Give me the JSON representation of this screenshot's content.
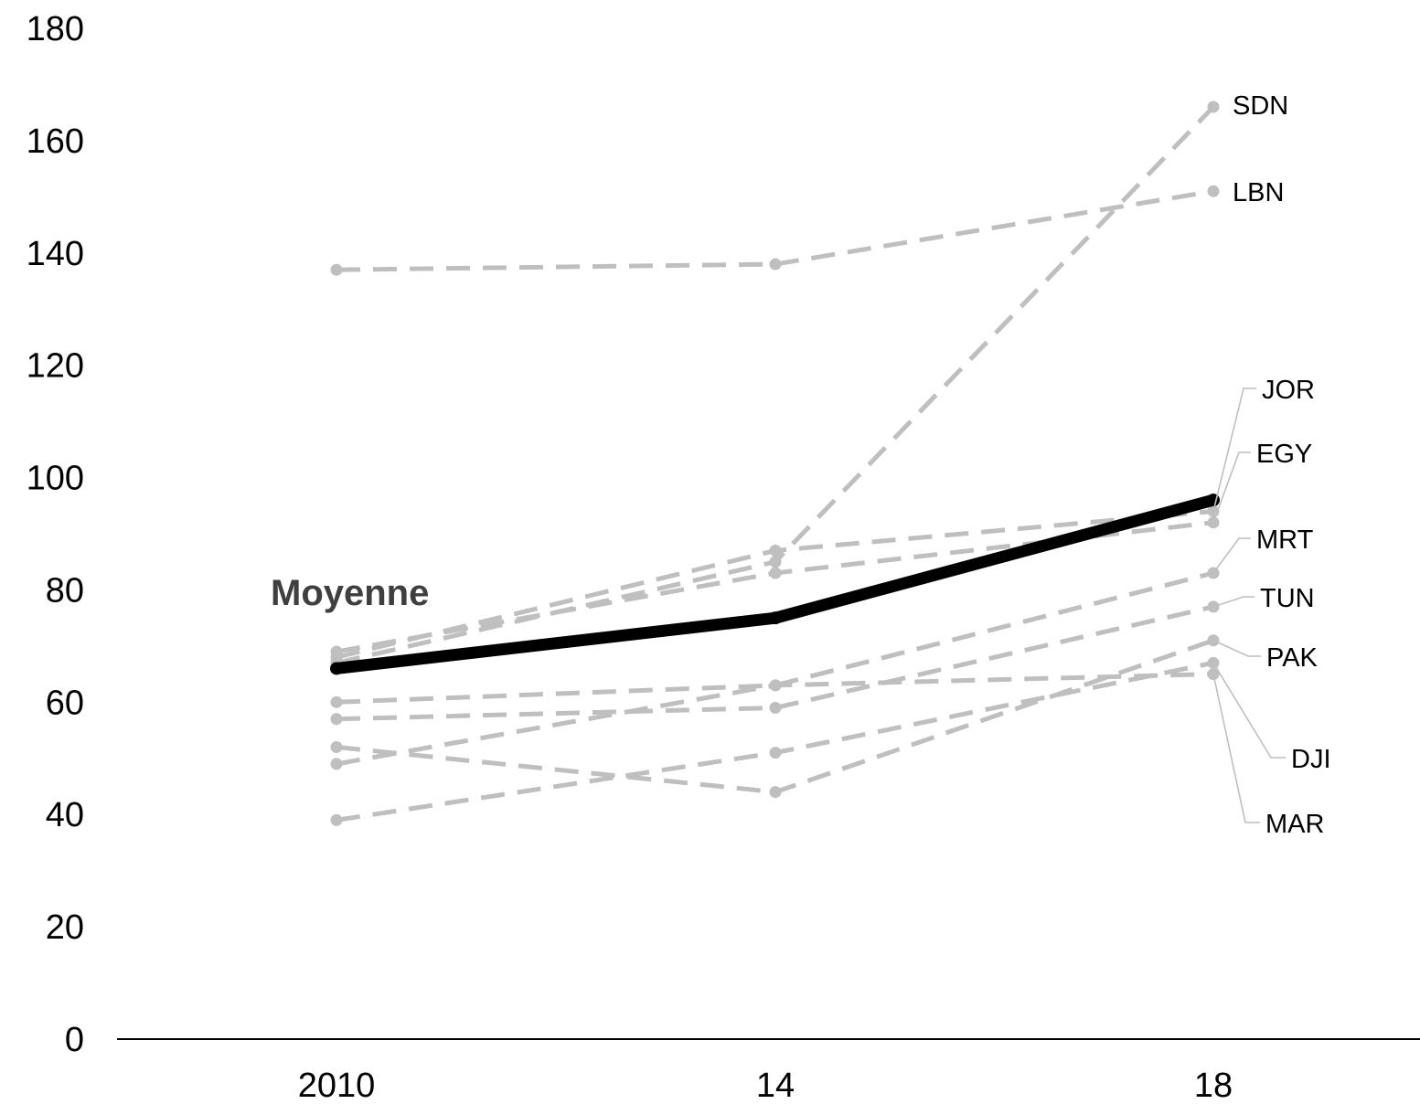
{
  "chart_data": {
    "type": "line",
    "title": "",
    "xlabel": "",
    "ylabel": "",
    "x": [
      "2010",
      "14",
      "18"
    ],
    "ylim": [
      0,
      180
    ],
    "yticks": [
      "0",
      "20",
      "40",
      "60",
      "80",
      "100",
      "120",
      "140",
      "160",
      "180"
    ],
    "grid": false,
    "legend": "none",
    "colors": {
      "series": "#bfbfbf",
      "average": "#000000",
      "axis": "#000000",
      "leader": "#bfbfbf"
    },
    "average": {
      "name": "Moyenne",
      "values": [
        66,
        75,
        96
      ]
    },
    "series": [
      {
        "name": "SDN",
        "values": [
          67,
          85,
          166
        ]
      },
      {
        "name": "LBN",
        "values": [
          137,
          138,
          151
        ]
      },
      {
        "name": "JOR",
        "values": [
          68,
          87,
          94
        ]
      },
      {
        "name": "EGY",
        "values": [
          69,
          83,
          92
        ]
      },
      {
        "name": "MRT",
        "values": [
          60,
          63,
          83
        ]
      },
      {
        "name": "TUN",
        "values": [
          57,
          59,
          77
        ]
      },
      {
        "name": "PAK",
        "values": [
          52,
          44,
          71
        ]
      },
      {
        "name": "DJI",
        "values": [
          39,
          51,
          67
        ]
      },
      {
        "name": "MAR",
        "values": [
          49,
          63,
          65
        ]
      }
    ]
  }
}
